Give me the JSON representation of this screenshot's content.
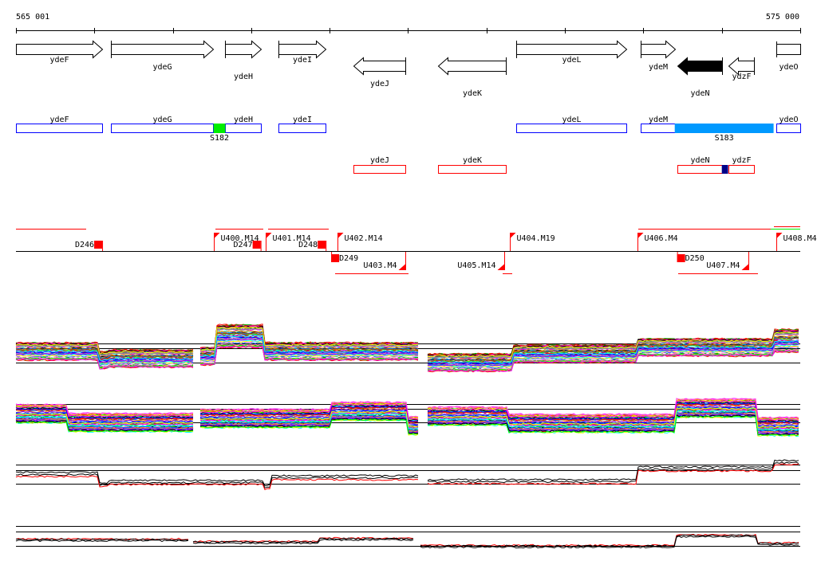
{
  "ruler": {
    "start_label": "565 001",
    "end_label": "575 000",
    "start": 565001,
    "end": 575000,
    "tick_step": 1000
  },
  "genes_forward": [
    {
      "name": "ydeF",
      "start": 565001,
      "end": 566100
    },
    {
      "name": "ydeG",
      "start": 566210,
      "end": 567510
    },
    {
      "name": "ydeH",
      "start": 567670,
      "end": 568120
    },
    {
      "name": "ydeI",
      "start": 568350,
      "end": 568950
    },
    {
      "name": "ydeL",
      "start": 571380,
      "end": 572780
    },
    {
      "name": "ydeM",
      "start": 572970,
      "end": 573400
    },
    {
      "name": "ydeO",
      "start": 574690,
      "end": 575000
    }
  ],
  "genes_reverse": [
    {
      "name": "ydeJ",
      "start": 569300,
      "end": 569960,
      "filled": false
    },
    {
      "name": "ydeK",
      "start": 570380,
      "end": 571250,
      "filled": false
    },
    {
      "name": "ydeN",
      "start": 573430,
      "end": 574000,
      "filled": true
    },
    {
      "name": "ydzF",
      "start": 574080,
      "end": 574410,
      "filled": false
    }
  ],
  "blue_boxes": [
    "ydeF",
    "ydeG",
    "ydeH",
    "ydeI",
    "ydeL",
    "ydeM",
    "ydeO"
  ],
  "red_boxes": [
    "ydeJ",
    "ydeK",
    "ydeN",
    "ydzF"
  ],
  "features": [
    {
      "label": "S182",
      "start": 567520,
      "end": 567670,
      "color": "#00ee00"
    },
    {
      "label": "S183",
      "start": 573400,
      "end": 574660,
      "color": "#0099ff"
    },
    {
      "label": "",
      "start": 574000,
      "end": 574080,
      "color": "#000088"
    }
  ],
  "segments_up": [
    {
      "label": "U400.M14",
      "pos": 567520
    },
    {
      "label": "U401.M14",
      "pos": 568180
    },
    {
      "label": "U402.M14",
      "pos": 569100
    },
    {
      "label": "U404.M19",
      "pos": 571300
    },
    {
      "label": "U406.M4",
      "pos": 572930
    },
    {
      "label": "U408.M4",
      "pos": 574690
    }
  ],
  "segments_down": [
    {
      "label": "U403.M4",
      "pos": 569960
    },
    {
      "label": "U405.M14",
      "pos": 571230
    },
    {
      "label": "U407.M4",
      "pos": 574340
    }
  ],
  "downshifts": [
    {
      "label": "D246",
      "pos": 566100,
      "side": "up"
    },
    {
      "label": "D247",
      "pos": 568120,
      "side": "up"
    },
    {
      "label": "D248",
      "pos": 568950,
      "side": "up"
    },
    {
      "label": "D249",
      "pos": 569020,
      "side": "down"
    },
    {
      "label": "D250",
      "pos": 573430,
      "side": "down"
    }
  ],
  "colors": {
    "blue": "#0000ff",
    "red": "#ff0000",
    "accent": "#0099ff",
    "green": "#00ee00"
  }
}
